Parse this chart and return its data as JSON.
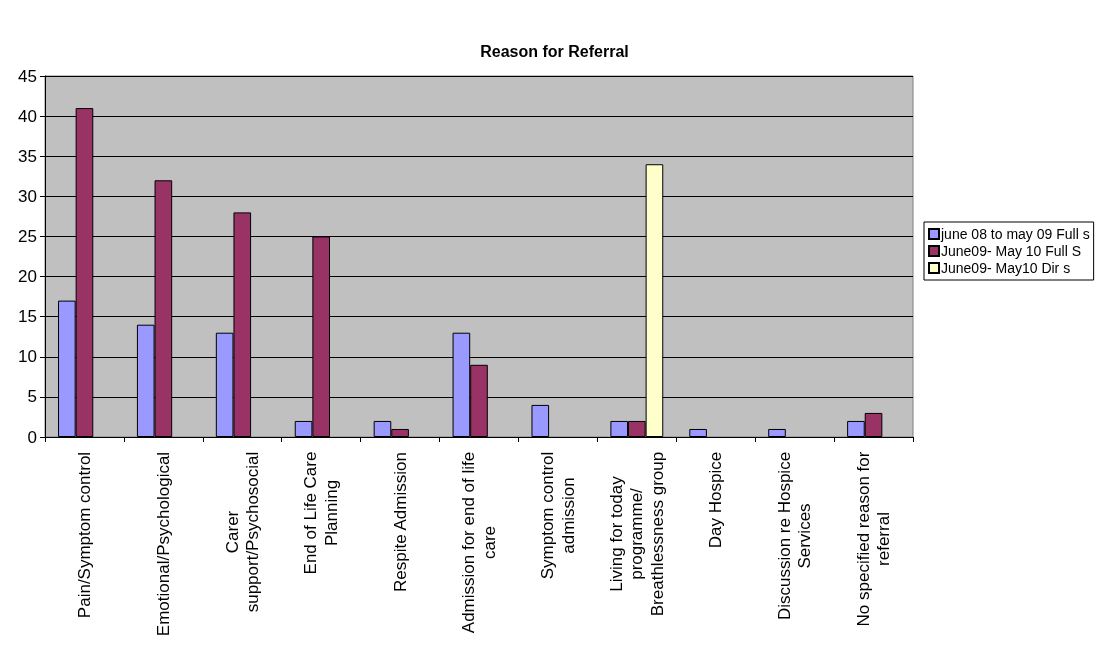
{
  "chart_data": {
    "type": "bar",
    "title": "Reason for Referral",
    "categories": [
      "Pain/Symptom control",
      "Emotional/Psychological",
      "Carer support/Psychosocial",
      "End of Life Care Planning",
      "Respite Admission",
      "Admission for end of life care",
      "Symptom control admission",
      "Living for today programme/ Breathlessness group",
      "Day Hospice",
      "Discussion re Hospice Services",
      "No specified reason for referral"
    ],
    "series": [
      {
        "name": "june 08 to may 09 Full s",
        "color": "#9999ff",
        "values": [
          17,
          14,
          13,
          2,
          2,
          13,
          4,
          2,
          1,
          1,
          2
        ]
      },
      {
        "name": "June09- May 10 Full S",
        "color": "#993366",
        "values": [
          41,
          32,
          28,
          25,
          1,
          9,
          null,
          2,
          null,
          null,
          3
        ]
      },
      {
        "name": "June09- May10 Dir s",
        "color": "#ffffcc",
        "values": [
          null,
          null,
          null,
          null,
          null,
          null,
          null,
          34,
          null,
          null,
          null
        ]
      }
    ],
    "ylim": [
      0,
      45
    ],
    "yticks": [
      0,
      5,
      10,
      15,
      20,
      25,
      30,
      35,
      40,
      45
    ],
    "grid": "y",
    "legend": "right"
  }
}
